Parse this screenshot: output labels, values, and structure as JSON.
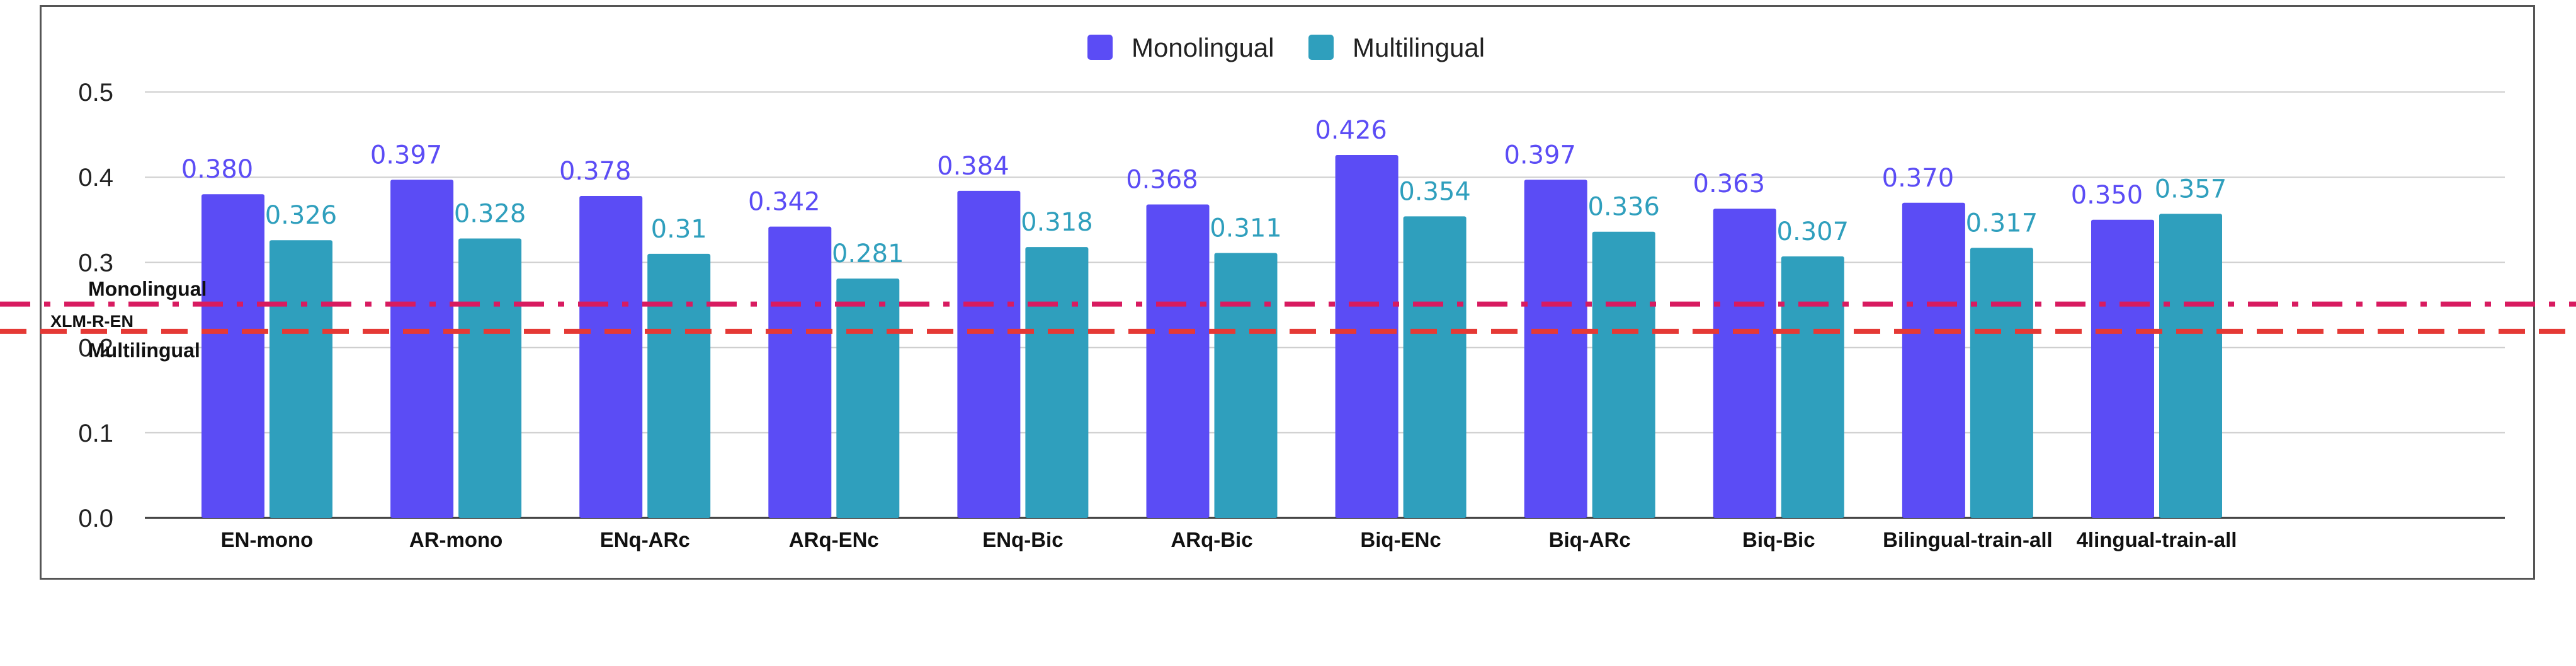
{
  "chart_data": {
    "type": "bar",
    "categories": [
      "EN-mono",
      "AR-mono",
      "ENq-ARc",
      "ARq-ENc",
      "ENq-Bic",
      "ARq-Bic",
      "Biq-ENc",
      "Biq-ARc",
      "Biq-Bic",
      "Bilingual-train-all",
      "4lingual-train-all"
    ],
    "series": [
      {
        "name": "Monolingual",
        "color": "#5b4cf5",
        "values": [
          0.38,
          0.397,
          0.378,
          0.342,
          0.384,
          0.368,
          0.426,
          0.397,
          0.363,
          0.37,
          0.35
        ],
        "labels": [
          "0.380",
          "0.397",
          "0.378",
          "0.342",
          "0.384",
          "0.368",
          "0.426",
          "0.397",
          "0.363",
          "0.370",
          "0.350"
        ]
      },
      {
        "name": "Multilingual",
        "color": "#2f9fbd",
        "values": [
          0.326,
          0.328,
          0.31,
          0.281,
          0.318,
          0.311,
          0.354,
          0.336,
          0.307,
          0.317,
          0.357
        ],
        "labels": [
          "0.326",
          "0.328",
          "0.31",
          "0.281",
          "0.318",
          "0.311",
          "0.354",
          "0.336",
          "0.307",
          "0.317",
          "0.357"
        ]
      }
    ],
    "title": "",
    "xlabel": "",
    "ylabel": "",
    "ylim": [
      0,
      0.5
    ],
    "yticks": [
      "0.0",
      "0.1",
      "0.2",
      "0.3",
      "0.4",
      "0.5"
    ],
    "grid": true,
    "legend": "top-center",
    "reference_lines": {
      "group_label": "XLM-R-EN",
      "lines": [
        {
          "label": "Monolingual",
          "value": 0.251,
          "style": "dash-dot",
          "color": "#d81b60"
        },
        {
          "label": "Multilingual",
          "value": 0.219,
          "style": "dashed",
          "color": "#e53935"
        }
      ]
    }
  }
}
